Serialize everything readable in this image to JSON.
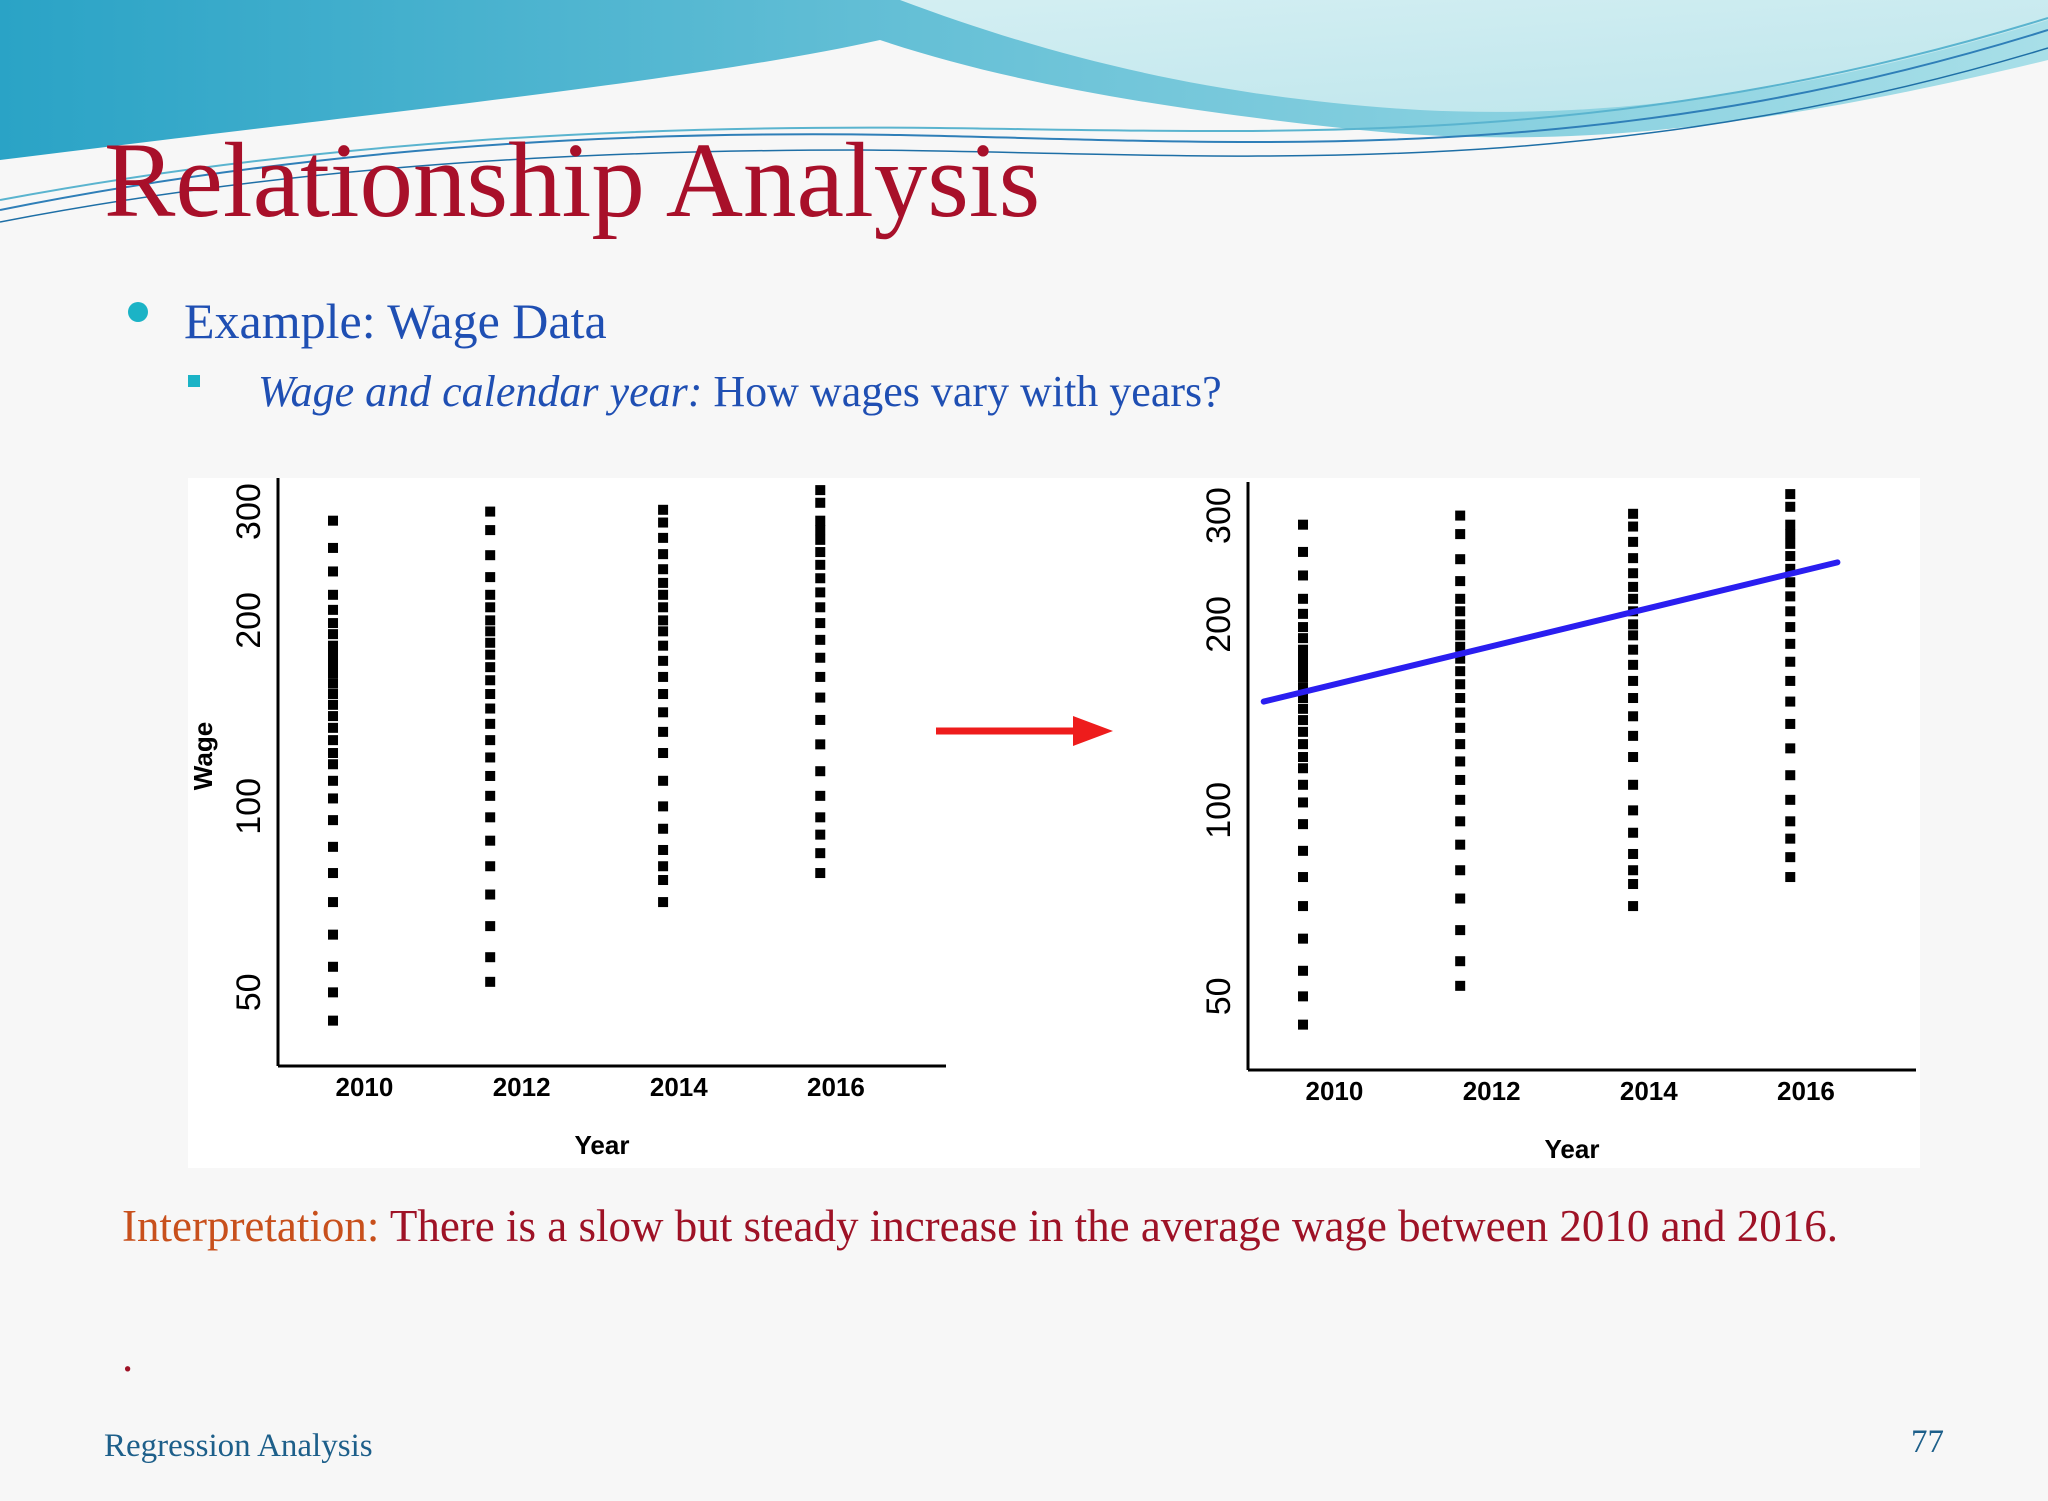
{
  "slide": {
    "title": "Relationship Analysis",
    "bullet_main": "Example: Wage Data",
    "bullet_sub_italic": "Wage and calendar year:",
    "bullet_sub_rest": " How wages vary with years?",
    "interpretation_label": "Interpretation:",
    "interpretation_text": " There is a slow but steady increase in the average wage between 2010 and 2016.",
    "trailing_period": ".",
    "footer": "Regression Analysis",
    "page_number": "77"
  },
  "colors": {
    "title": "#a8102a",
    "bullet_text": "#1f4fb3",
    "bullet_marker": "#1bb3c6",
    "interpretation_label": "#c8501c",
    "interpretation_text": "#9e1226",
    "arrow": "#ee1c1c",
    "fit_line": "#2a1ef0",
    "points": "#000000"
  },
  "arrow_icon": "right-arrow-icon",
  "chart_data": [
    {
      "type": "scatter",
      "xlabel": "Year",
      "ylabel": "Wage",
      "xticks": [
        2010,
        2012,
        2014,
        2016
      ],
      "yticks": [
        50,
        100,
        200,
        300
      ],
      "y_scale": "log",
      "xlim": [
        2008.9,
        2017.4
      ],
      "ylim": [
        38,
        340
      ],
      "grid": false,
      "series": [
        {
          "x": 2009.6,
          "y": [
            45,
            50,
            55,
            62,
            70,
            78,
            86,
            95,
            103,
            110,
            117,
            122,
            128,
            134,
            140,
            146,
            152,
            158,
            164,
            170,
            176,
            182,
            190,
            198,
            208,
            220,
            240,
            262,
            290
          ]
        },
        {
          "x": 2011.6,
          "y": [
            52,
            57,
            64,
            72,
            80,
            88,
            96,
            104,
            112,
            120,
            128,
            136,
            144,
            152,
            160,
            168,
            176,
            184,
            192,
            200,
            210,
            220,
            235,
            255,
            280,
            300
          ]
        },
        {
          "x": 2013.8,
          "y": [
            70,
            76,
            80,
            85,
            92,
            100,
            110,
            122,
            132,
            142,
            152,
            162,
            172,
            182,
            192,
            200,
            210,
            220,
            230,
            242,
            256,
            272,
            288,
            302
          ]
        },
        {
          "x": 2015.8,
          "y": [
            78,
            84,
            90,
            96,
            104,
            114,
            126,
            138,
            150,
            162,
            174,
            186,
            198,
            210,
            222,
            234,
            246,
            258,
            270,
            280,
            290,
            310,
            325
          ]
        }
      ]
    },
    {
      "type": "scatter",
      "xlabel": "Year",
      "ylabel": "",
      "xticks": [
        2010,
        2012,
        2014,
        2016
      ],
      "yticks": [
        50,
        100,
        200,
        300
      ],
      "y_scale": "log",
      "xlim": [
        2008.9,
        2017.4
      ],
      "ylim": [
        38,
        340
      ],
      "grid": false,
      "series": [
        {
          "x": 2009.6,
          "y": [
            45,
            50,
            55,
            62,
            70,
            78,
            86,
            95,
            103,
            110,
            117,
            122,
            128,
            134,
            140,
            146,
            152,
            158,
            164,
            170,
            176,
            182,
            190,
            198,
            208,
            220,
            240,
            262,
            290
          ]
        },
        {
          "x": 2011.6,
          "y": [
            52,
            57,
            64,
            72,
            80,
            88,
            96,
            104,
            112,
            120,
            128,
            136,
            144,
            152,
            160,
            168,
            176,
            184,
            192,
            200,
            210,
            220,
            235,
            255,
            280,
            300
          ]
        },
        {
          "x": 2013.8,
          "y": [
            70,
            76,
            80,
            85,
            92,
            100,
            110,
            122,
            132,
            142,
            152,
            162,
            172,
            182,
            192,
            200,
            210,
            220,
            230,
            242,
            256,
            272,
            288,
            302
          ]
        },
        {
          "x": 2015.8,
          "y": [
            78,
            84,
            90,
            96,
            104,
            114,
            126,
            138,
            150,
            162,
            174,
            186,
            198,
            210,
            222,
            234,
            246,
            258,
            270,
            280,
            290,
            310,
            325
          ]
        }
      ],
      "fit_line": {
        "x": [
          2009.1,
          2016.4
        ],
        "y": [
          150,
          252
        ]
      }
    }
  ]
}
